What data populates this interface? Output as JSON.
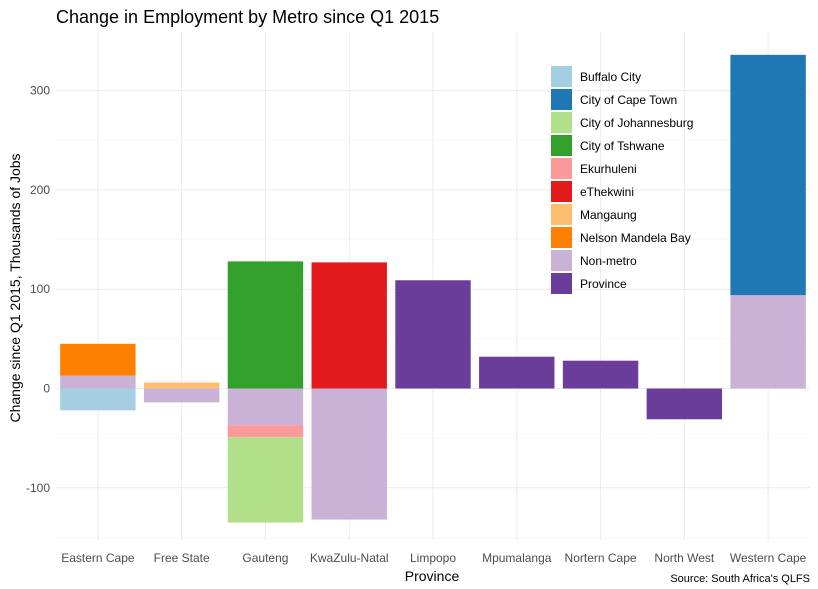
{
  "chart_data": {
    "type": "bar",
    "stacked": true,
    "title": "Change in Employment by Metro since Q1 2015",
    "xlabel": "Province",
    "ylabel": "Change since Q1 2015, Thousands of Jobs",
    "caption": "Source: South Africa's QLFS",
    "ylim": [
      -152,
      342
    ],
    "yticks": [
      -100,
      0,
      100,
      200,
      300
    ],
    "grid": true,
    "legend_position": "top-right-inside",
    "categories": [
      "Eastern Cape",
      "Free State",
      "Gauteng",
      "KwaZulu-Natal",
      "Limpopo",
      "Mpumalanga",
      "Nortern Cape",
      "North West",
      "Western Cape"
    ],
    "series": [
      {
        "name": "Buffalo City",
        "color": "#A6CEE3",
        "values": [
          -22,
          0,
          0,
          0,
          0,
          0,
          0,
          0,
          0
        ]
      },
      {
        "name": "City of Cape Town",
        "color": "#1F78B4",
        "values": [
          0,
          0,
          0,
          0,
          0,
          0,
          0,
          0,
          242
        ]
      },
      {
        "name": "City of Johannesburg",
        "color": "#B2DF8A",
        "values": [
          0,
          0,
          -86,
          0,
          0,
          0,
          0,
          0,
          0
        ]
      },
      {
        "name": "City of Tshwane",
        "color": "#33A02C",
        "values": [
          0,
          0,
          128,
          0,
          0,
          0,
          0,
          0,
          0
        ]
      },
      {
        "name": "Ekurhuleni",
        "color": "#FB9A99",
        "values": [
          0,
          0,
          -12,
          0,
          0,
          0,
          0,
          0,
          0
        ]
      },
      {
        "name": "eThekwini",
        "color": "#E31A1C",
        "values": [
          0,
          0,
          0,
          127,
          0,
          0,
          0,
          0,
          0
        ]
      },
      {
        "name": "Mangaung",
        "color": "#FDBF6F",
        "values": [
          0,
          6,
          0,
          0,
          0,
          0,
          0,
          0,
          0
        ]
      },
      {
        "name": "Nelson Mandela Bay",
        "color": "#FF7F00",
        "values": [
          32,
          0,
          0,
          0,
          0,
          0,
          0,
          0,
          0
        ]
      },
      {
        "name": "Non-metro",
        "color": "#CAB2D6",
        "values": [
          13,
          -14,
          -37,
          -132,
          0,
          0,
          0,
          0,
          94
        ]
      },
      {
        "name": "Province",
        "color": "#6A3D9A",
        "values": [
          0,
          0,
          0,
          0,
          109,
          32,
          28,
          -31,
          0
        ]
      }
    ],
    "stacks": [
      {
        "category": "Eastern Cape",
        "segments": [
          {
            "series": "Buffalo City",
            "from": 0,
            "to": -22
          },
          {
            "series": "Non-metro",
            "from": 0,
            "to": 13
          },
          {
            "series": "Nelson Mandela Bay",
            "from": 13,
            "to": 45
          }
        ]
      },
      {
        "category": "Free State",
        "segments": [
          {
            "series": "Non-metro",
            "from": 0,
            "to": -14
          },
          {
            "series": "Mangaung",
            "from": 0,
            "to": 6
          }
        ]
      },
      {
        "category": "Gauteng",
        "segments": [
          {
            "series": "City of Tshwane",
            "from": 0,
            "to": 128
          },
          {
            "series": "Non-metro",
            "from": 0,
            "to": -37
          },
          {
            "series": "Ekurhuleni",
            "from": -37,
            "to": -49
          },
          {
            "series": "City of Johannesburg",
            "from": -49,
            "to": -135
          }
        ]
      },
      {
        "category": "KwaZulu-Natal",
        "segments": [
          {
            "series": "eThekwini",
            "from": 0,
            "to": 127
          },
          {
            "series": "Non-metro",
            "from": 0,
            "to": -132
          }
        ]
      },
      {
        "category": "Limpopo",
        "segments": [
          {
            "series": "Province",
            "from": 0,
            "to": 109
          }
        ]
      },
      {
        "category": "Mpumalanga",
        "segments": [
          {
            "series": "Province",
            "from": 0,
            "to": 32
          }
        ]
      },
      {
        "category": "Nortern Cape",
        "segments": [
          {
            "series": "Province",
            "from": 0,
            "to": 28
          }
        ]
      },
      {
        "category": "North West",
        "segments": [
          {
            "series": "Province",
            "from": 0,
            "to": -31
          }
        ]
      },
      {
        "category": "Western Cape",
        "segments": [
          {
            "series": "Non-metro",
            "from": 0,
            "to": 94
          },
          {
            "series": "City of Cape Town",
            "from": 94,
            "to": 336
          }
        ]
      }
    ]
  }
}
